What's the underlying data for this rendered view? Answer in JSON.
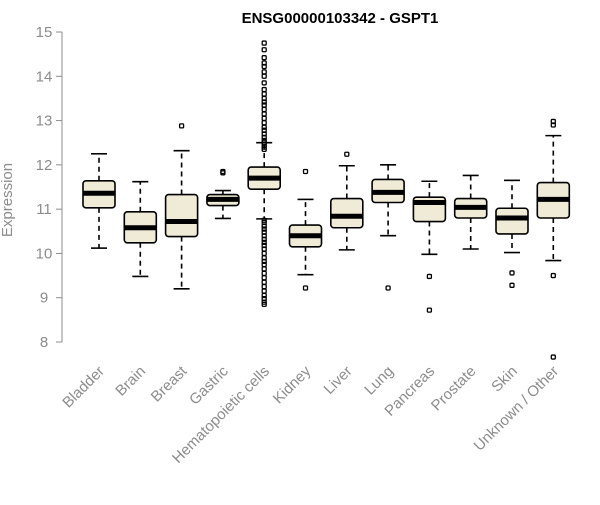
{
  "colors": {
    "box_fill": "#f0ebd7",
    "box_stroke": "#000000",
    "axis": "#8c8c8c",
    "title": "#000000",
    "background": "#ffffff"
  },
  "chart_data": {
    "type": "box",
    "title": "ENSG00000103342 - GSPT1",
    "xlabel": "",
    "ylabel": "Expression",
    "ylim": [
      7.6,
      15.1
    ],
    "yticks": [
      8,
      9,
      10,
      11,
      12,
      13,
      14,
      15
    ],
    "grid": false,
    "legend": "none",
    "categories": [
      "Bladder",
      "Brain",
      "Breast",
      "Gastric",
      "Hematopoietic cells",
      "Kidney",
      "Liver",
      "Lung",
      "Pancreas",
      "Prostate",
      "Skin",
      "Unknown / Other"
    ],
    "boxes": [
      {
        "category": "Bladder",
        "whisker_low": 10.12,
        "q1": 11.03,
        "median": 11.36,
        "q3": 11.64,
        "whisker_high": 12.25,
        "outliers": []
      },
      {
        "category": "Brain",
        "whisker_low": 9.48,
        "q1": 10.24,
        "median": 10.58,
        "q3": 10.94,
        "whisker_high": 11.62,
        "outliers": []
      },
      {
        "category": "Breast",
        "whisker_low": 9.2,
        "q1": 10.38,
        "median": 10.72,
        "q3": 11.33,
        "whisker_high": 12.32,
        "outliers": [
          12.88
        ]
      },
      {
        "category": "Gastric",
        "whisker_low": 10.79,
        "q1": 11.08,
        "median": 11.22,
        "q3": 11.33,
        "whisker_high": 11.42,
        "outliers": [
          11.82,
          11.85
        ]
      },
      {
        "category": "Hematopoietic cells",
        "whisker_low": 10.78,
        "q1": 11.45,
        "median": 11.7,
        "q3": 11.95,
        "whisker_high": 12.5,
        "outliers": [
          14.75,
          14.6,
          14.42,
          14.3,
          14.22,
          14.1,
          14.0,
          13.85,
          13.7,
          13.6,
          13.5,
          13.42,
          13.35,
          13.25,
          13.15,
          13.05,
          12.95,
          12.85,
          12.78,
          12.7,
          12.62,
          12.55,
          12.5,
          12.45,
          12.4,
          12.35,
          10.75,
          10.7,
          10.62,
          10.55,
          10.48,
          10.4,
          10.32,
          10.25,
          10.18,
          10.1,
          10.0,
          9.9,
          9.82,
          9.75,
          9.65,
          9.55,
          9.45,
          9.35,
          9.25,
          9.15,
          9.05,
          8.98,
          8.9,
          8.85
        ]
      },
      {
        "category": "Kidney",
        "whisker_low": 9.52,
        "q1": 10.15,
        "median": 10.4,
        "q3": 10.64,
        "whisker_high": 11.22,
        "outliers": [
          11.85,
          9.22
        ]
      },
      {
        "category": "Liver",
        "whisker_low": 10.08,
        "q1": 10.58,
        "median": 10.84,
        "q3": 11.24,
        "whisker_high": 11.98,
        "outliers": [
          12.24
        ]
      },
      {
        "category": "Lung",
        "whisker_low": 10.4,
        "q1": 11.15,
        "median": 11.38,
        "q3": 11.67,
        "whisker_high": 12.0,
        "outliers": [
          9.22
        ]
      },
      {
        "category": "Pancreas",
        "whisker_low": 9.98,
        "q1": 10.72,
        "median": 11.15,
        "q3": 11.27,
        "whisker_high": 11.63,
        "outliers": [
          9.48,
          8.72
        ]
      },
      {
        "category": "Prostate",
        "whisker_low": 10.1,
        "q1": 10.8,
        "median": 11.04,
        "q3": 11.24,
        "whisker_high": 11.76,
        "outliers": []
      },
      {
        "category": "Skin",
        "whisker_low": 10.02,
        "q1": 10.44,
        "median": 10.8,
        "q3": 11.02,
        "whisker_high": 11.65,
        "outliers": [
          9.56,
          9.28
        ]
      },
      {
        "category": "Unknown / Other",
        "whisker_low": 9.84,
        "q1": 10.8,
        "median": 11.22,
        "q3": 11.6,
        "whisker_high": 12.66,
        "outliers": [
          12.98,
          12.9,
          9.5,
          7.66
        ]
      }
    ]
  }
}
